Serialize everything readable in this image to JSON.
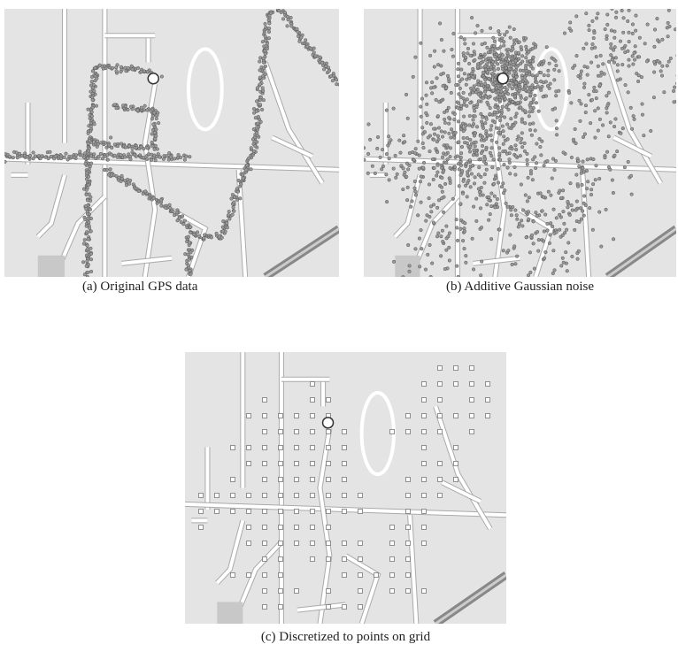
{
  "figure": {
    "panels": [
      {
        "caption": "(a) Original GPS data"
      },
      {
        "caption": "(b) Additive Gaussian noise"
      },
      {
        "caption": "(c) Discretized to points on grid"
      }
    ]
  }
}
